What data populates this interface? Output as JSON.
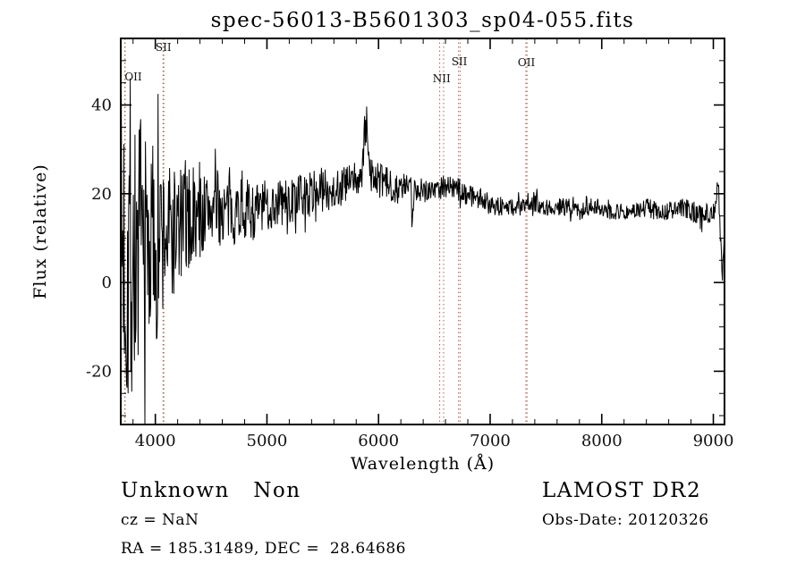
{
  "chart_data": {
    "type": "line",
    "title": "spec-56013-B5601303_sp04-055.fits",
    "xlabel": "Wavelength (Å)",
    "ylabel": "Flux (relative)",
    "xlim": [
      3690,
      9100
    ],
    "ylim": [
      -32,
      55
    ],
    "x_major_ticks": [
      4000,
      5000,
      6000,
      7000,
      8000,
      9000
    ],
    "y_major_ticks": [
      -20,
      0,
      20,
      40
    ],
    "x_minor_step": 200,
    "y_minor_step": 5,
    "grid": false,
    "legend": "none",
    "line_color": "#000000",
    "marker_line_color": "#aa6655",
    "emission_markers": [
      {
        "label": "OII",
        "wavelengths": [
          3726,
          3729
        ],
        "label_dy": 47
      },
      {
        "label": "SII",
        "wavelengths": [
          4069,
          4076
        ],
        "label_dy": 14
      },
      {
        "label": "NII",
        "wavelengths": [
          6548,
          6583
        ],
        "label_dy": 49
      },
      {
        "label": "SII",
        "wavelengths": [
          6717,
          6731
        ],
        "label_dy": 30
      },
      {
        "label": "OII",
        "wavelengths": [
          7320,
          7330
        ],
        "label_dy": 31
      }
    ],
    "continuum_points": [
      [
        3690,
        3
      ],
      [
        3720,
        10
      ],
      [
        3740,
        2
      ],
      [
        3760,
        12
      ],
      [
        3780,
        4
      ],
      [
        3800,
        6
      ],
      [
        3850,
        7
      ],
      [
        3900,
        8
      ],
      [
        3950,
        9
      ],
      [
        4000,
        10
      ],
      [
        4050,
        10
      ],
      [
        4100,
        11
      ],
      [
        4150,
        11
      ],
      [
        4200,
        12
      ],
      [
        4250,
        13
      ],
      [
        4300,
        14
      ],
      [
        4350,
        14
      ],
      [
        4400,
        15
      ],
      [
        4450,
        16
      ],
      [
        4500,
        17
      ],
      [
        4550,
        17
      ],
      [
        4600,
        16
      ],
      [
        4650,
        16
      ],
      [
        4700,
        16
      ],
      [
        4750,
        17
      ],
      [
        4800,
        17
      ],
      [
        4850,
        16
      ],
      [
        4900,
        16
      ],
      [
        4950,
        17
      ],
      [
        5000,
        17
      ],
      [
        5100,
        18
      ],
      [
        5200,
        18
      ],
      [
        5300,
        19
      ],
      [
        5400,
        20
      ],
      [
        5500,
        21
      ],
      [
        5600,
        21
      ],
      [
        5700,
        22
      ],
      [
        5800,
        23
      ],
      [
        5850,
        24
      ],
      [
        5900,
        25
      ],
      [
        5950,
        24
      ],
      [
        6000,
        23
      ],
      [
        6100,
        22
      ],
      [
        6200,
        21
      ],
      [
        6300,
        22
      ],
      [
        6400,
        21
      ],
      [
        6500,
        21
      ],
      [
        6600,
        22
      ],
      [
        6700,
        21
      ],
      [
        6800,
        20
      ],
      [
        6900,
        19
      ],
      [
        7000,
        18
      ],
      [
        7100,
        17
      ],
      [
        7200,
        17
      ],
      [
        7300,
        17
      ],
      [
        7400,
        18
      ],
      [
        7500,
        17
      ],
      [
        7600,
        17
      ],
      [
        7700,
        17
      ],
      [
        7800,
        16
      ],
      [
        7900,
        17
      ],
      [
        8000,
        17
      ],
      [
        8100,
        16
      ],
      [
        8200,
        16
      ],
      [
        8300,
        16
      ],
      [
        8400,
        17
      ],
      [
        8500,
        16
      ],
      [
        8600,
        16
      ],
      [
        8700,
        17
      ],
      [
        8800,
        16
      ],
      [
        8900,
        15
      ],
      [
        9000,
        16
      ],
      [
        9100,
        17
      ]
    ],
    "noise_amplitude_points": [
      [
        3690,
        40
      ],
      [
        3750,
        42
      ],
      [
        3800,
        34
      ],
      [
        3850,
        30
      ],
      [
        3900,
        27
      ],
      [
        3950,
        25
      ],
      [
        4000,
        22
      ],
      [
        4100,
        18
      ],
      [
        4200,
        15
      ],
      [
        4300,
        12
      ],
      [
        4400,
        10
      ],
      [
        4500,
        9
      ],
      [
        4600,
        8
      ],
      [
        4800,
        7
      ],
      [
        5000,
        6
      ],
      [
        5200,
        5.5
      ],
      [
        5400,
        5
      ],
      [
        5600,
        5
      ],
      [
        5800,
        4.5
      ],
      [
        6000,
        4
      ],
      [
        6200,
        3.5
      ],
      [
        6400,
        3
      ],
      [
        6600,
        2.8
      ],
      [
        6800,
        2.6
      ],
      [
        7000,
        2.4
      ],
      [
        7300,
        2.2
      ],
      [
        7600,
        2
      ],
      [
        8000,
        2
      ],
      [
        8400,
        2.1
      ],
      [
        8800,
        2.3
      ],
      [
        9100,
        2.5
      ]
    ],
    "features": [
      {
        "center": 5878,
        "width": 10,
        "height": 9
      },
      {
        "center": 5898,
        "width": 8,
        "height": 11
      },
      {
        "center": 6303,
        "width": 7,
        "height": -9
      },
      {
        "center": 9040,
        "width": 8,
        "height": 8
      },
      {
        "center": 9080,
        "width": 12,
        "height": -15
      }
    ],
    "render": {
      "num_points": 1150,
      "seed": 7
    }
  },
  "annotations": {
    "class_label": "Unknown   Non",
    "survey": "LAMOST DR2",
    "cz": "cz = NaN",
    "obs_date": "Obs-Date: 20120326",
    "coords": "RA = 185.31489, DEC =  28.64686"
  }
}
